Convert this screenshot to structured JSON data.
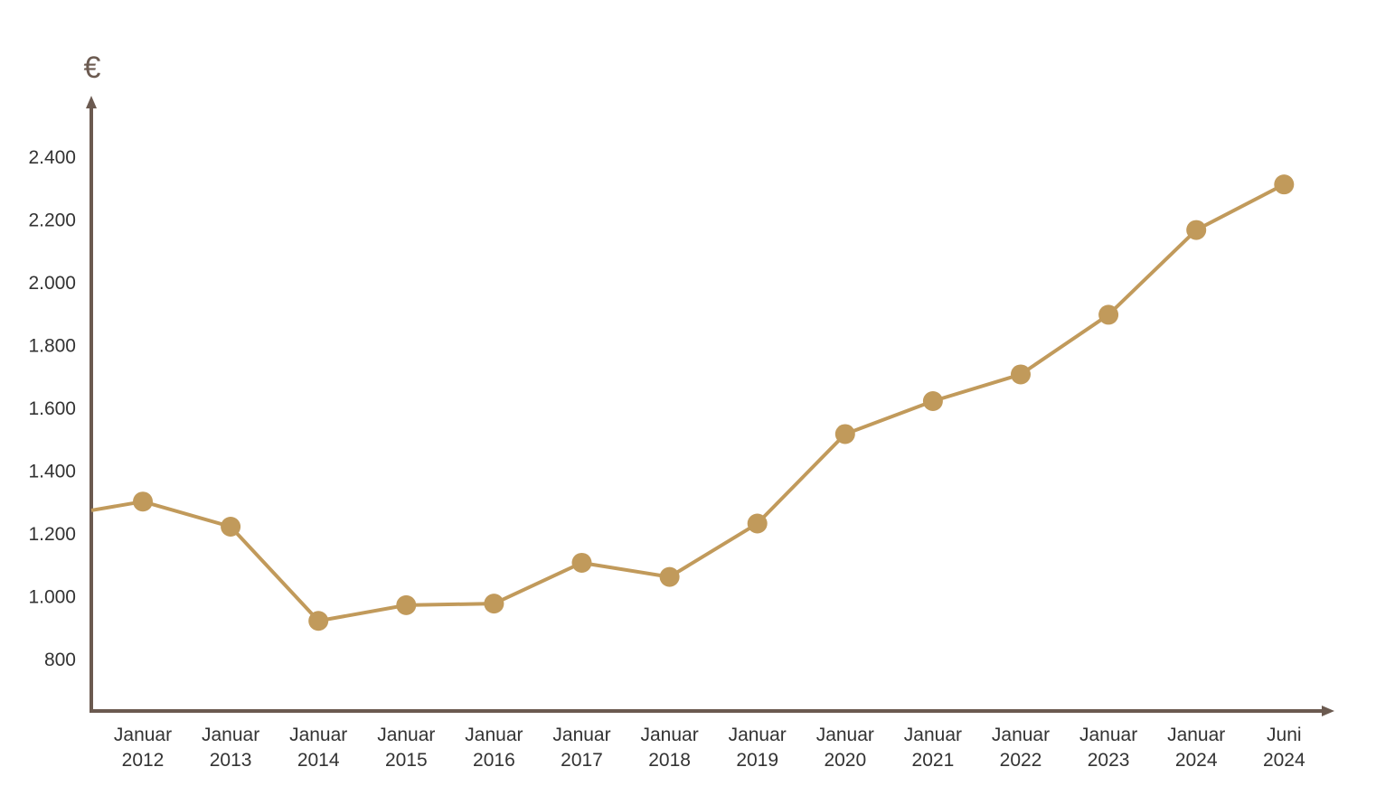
{
  "chart_data": {
    "type": "line",
    "y_label": "€",
    "categories": [
      null,
      "Januar 2012",
      "Januar 2013",
      "Januar 2014",
      "Januar 2015",
      "Januar 2016",
      "Januar 2017",
      "Januar 2018",
      "Januar 2019",
      "Januar 2020",
      "Januar 2021",
      "Januar 2022",
      "Januar 2023",
      "Januar 2024",
      "Juni 2024"
    ],
    "values": [
      1272,
      1300,
      1220,
      920,
      970,
      975,
      1105,
      1060,
      1230,
      1515,
      1620,
      1705,
      1895,
      2165,
      2310
    ],
    "color": "#c19a5b",
    "axis_color": "#6b5a50",
    "ylim": [
      633,
      2581
    ],
    "yticks": [
      800,
      {
        "value": 1000,
        "label": "1.000"
      },
      {
        "value": 1200,
        "label": "1.200"
      },
      {
        "value": 1400,
        "label": "1.400"
      },
      {
        "value": 1600,
        "label": "1.600"
      },
      {
        "value": 1800,
        "label": "1.800"
      },
      {
        "value": 2000,
        "label": "2.000"
      },
      {
        "value": 2200,
        "label": "2.200"
      },
      {
        "value": 2400,
        "label": "2.400"
      }
    ],
    "grid": false
  }
}
